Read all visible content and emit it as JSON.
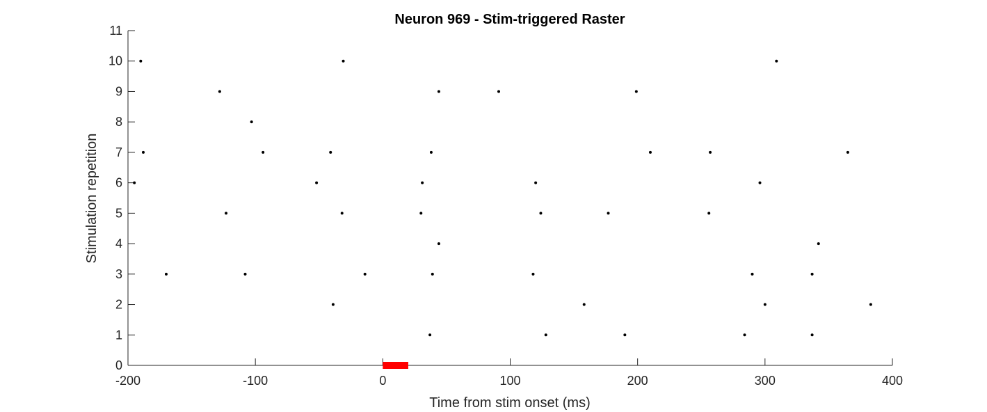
{
  "chart_data": {
    "type": "scatter",
    "title": "Neuron 969 - Stim-triggered Raster",
    "xlabel": "Time from stim onset (ms)",
    "ylabel": "Stimulation repetition",
    "xlim": [
      -200,
      400
    ],
    "ylim": [
      0,
      11
    ],
    "xticks": [
      -200,
      -100,
      0,
      100,
      200,
      300,
      400
    ],
    "yticks": [
      0,
      1,
      2,
      3,
      4,
      5,
      6,
      7,
      8,
      9,
      10,
      11
    ],
    "grid": false,
    "marker_color": "#000000",
    "stim_bar": {
      "x_start": 0,
      "x_end": 20,
      "y": 0,
      "color": "#ff0000"
    },
    "points": [
      {
        "x": 37,
        "y": 1
      },
      {
        "x": 128,
        "y": 1
      },
      {
        "x": 190,
        "y": 1
      },
      {
        "x": 284,
        "y": 1
      },
      {
        "x": 337,
        "y": 1
      },
      {
        "x": -39,
        "y": 2
      },
      {
        "x": 158,
        "y": 2
      },
      {
        "x": 300,
        "y": 2
      },
      {
        "x": 383,
        "y": 2
      },
      {
        "x": -170,
        "y": 3
      },
      {
        "x": -108,
        "y": 3
      },
      {
        "x": -14,
        "y": 3
      },
      {
        "x": 39,
        "y": 3
      },
      {
        "x": 118,
        "y": 3
      },
      {
        "x": 290,
        "y": 3
      },
      {
        "x": 337,
        "y": 3
      },
      {
        "x": 44,
        "y": 4
      },
      {
        "x": 342,
        "y": 4
      },
      {
        "x": -123,
        "y": 5
      },
      {
        "x": -32,
        "y": 5
      },
      {
        "x": 30,
        "y": 5
      },
      {
        "x": 124,
        "y": 5
      },
      {
        "x": 177,
        "y": 5
      },
      {
        "x": 256,
        "y": 5
      },
      {
        "x": -195,
        "y": 6
      },
      {
        "x": -52,
        "y": 6
      },
      {
        "x": 31,
        "y": 6
      },
      {
        "x": 120,
        "y": 6
      },
      {
        "x": 296,
        "y": 6
      },
      {
        "x": -188,
        "y": 7
      },
      {
        "x": -94,
        "y": 7
      },
      {
        "x": -41,
        "y": 7
      },
      {
        "x": 38,
        "y": 7
      },
      {
        "x": 210,
        "y": 7
      },
      {
        "x": 257,
        "y": 7
      },
      {
        "x": 365,
        "y": 7
      },
      {
        "x": -103,
        "y": 8
      },
      {
        "x": -128,
        "y": 9
      },
      {
        "x": 44,
        "y": 9
      },
      {
        "x": 91,
        "y": 9
      },
      {
        "x": 199,
        "y": 9
      },
      {
        "x": -190,
        "y": 10
      },
      {
        "x": -31,
        "y": 10
      },
      {
        "x": 309,
        "y": 10
      }
    ]
  }
}
